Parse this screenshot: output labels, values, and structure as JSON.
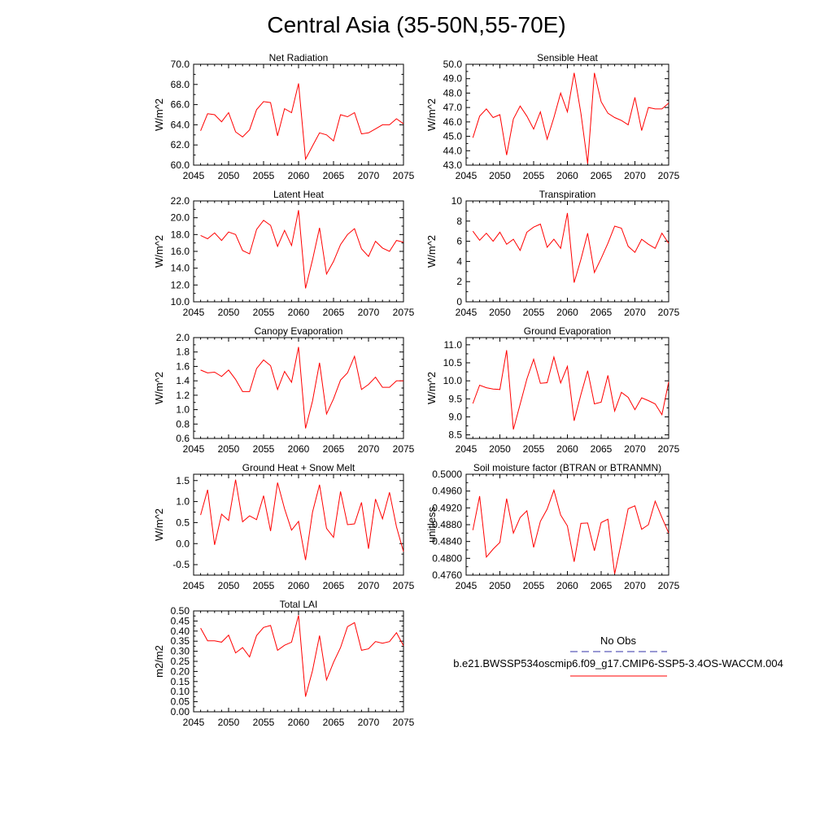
{
  "figure": {
    "title": "Central Asia (35-50N,55-70E)"
  },
  "colors": {
    "model_line": "#ff0000",
    "obs_line": "#3333aa",
    "axes": "#000000",
    "background": "#ffffff"
  },
  "legend": {
    "entries": [
      {
        "label": "No Obs",
        "style": "dashed",
        "color": "#3333aa"
      },
      {
        "label": "b.e21.BWSSP534oscmip6.f09_g17.CMIP6-SSP5-3.4OS-WACCM.004",
        "style": "solid",
        "color": "#ff0000"
      }
    ]
  },
  "chart_data": [
    {
      "type": "line",
      "title": "Net Radiation",
      "ylabel": "W/m^2",
      "xlim": [
        2045,
        2075
      ],
      "ylim": [
        60,
        70
      ],
      "xticks": [
        2045,
        2050,
        2055,
        2060,
        2065,
        2070,
        2075
      ],
      "xtick_labels": [
        "2045",
        "2050",
        "2055",
        "2060",
        "2065",
        "2070",
        "2075"
      ],
      "yticks": [
        60,
        62,
        64,
        66,
        68,
        70
      ],
      "ytick_labels": [
        "60.0",
        "62.0",
        "64.0",
        "66.0",
        "68.0",
        "70.0"
      ],
      "x": [
        2046,
        2047,
        2048,
        2049,
        2050,
        2051,
        2052,
        2053,
        2054,
        2055,
        2056,
        2057,
        2058,
        2059,
        2060,
        2061,
        2062,
        2063,
        2064,
        2065,
        2066,
        2067,
        2068,
        2069,
        2070,
        2071,
        2072,
        2073,
        2074,
        2075
      ],
      "series": [
        {
          "values": [
            63.4,
            65.1,
            65.0,
            64.3,
            65.2,
            63.3,
            62.8,
            63.5,
            65.5,
            66.3,
            66.2,
            62.9,
            65.6,
            65.2,
            68.1,
            60.6,
            61.9,
            63.2,
            63.0,
            62.4,
            65.0,
            64.8,
            65.2,
            63.1,
            63.2,
            63.6,
            64.0,
            64.0,
            64.6,
            64.1
          ]
        }
      ]
    },
    {
      "type": "line",
      "title": "Sensible Heat",
      "ylabel": "W/m^2",
      "xlim": [
        2045,
        2075
      ],
      "ylim": [
        43,
        50
      ],
      "xticks": [
        2045,
        2050,
        2055,
        2060,
        2065,
        2070,
        2075
      ],
      "xtick_labels": [
        "2045",
        "2050",
        "2055",
        "2060",
        "2065",
        "2070",
        "2075"
      ],
      "yticks": [
        43,
        44,
        45,
        46,
        47,
        48,
        49,
        50
      ],
      "ytick_labels": [
        "43.0",
        "44.0",
        "45.0",
        "46.0",
        "47.0",
        "48.0",
        "49.0",
        "50.0"
      ],
      "x": [
        2046,
        2047,
        2048,
        2049,
        2050,
        2051,
        2052,
        2053,
        2054,
        2055,
        2056,
        2057,
        2058,
        2059,
        2060,
        2061,
        2062,
        2063,
        2064,
        2065,
        2066,
        2067,
        2068,
        2069,
        2070,
        2071,
        2072,
        2073,
        2074,
        2075
      ],
      "series": [
        {
          "values": [
            44.9,
            46.4,
            46.9,
            46.3,
            46.5,
            43.7,
            46.2,
            47.1,
            46.4,
            45.5,
            46.7,
            44.8,
            46.3,
            48.0,
            46.7,
            49.4,
            46.6,
            43.1,
            49.4,
            47.4,
            46.6,
            46.3,
            46.1,
            45.8,
            47.7,
            45.4,
            47.0,
            46.9,
            46.9,
            47.3
          ]
        }
      ]
    },
    {
      "type": "line",
      "title": "Latent Heat",
      "ylabel": "W/m^2",
      "xlim": [
        2045,
        2075
      ],
      "ylim": [
        10,
        22
      ],
      "xticks": [
        2045,
        2050,
        2055,
        2060,
        2065,
        2070,
        2075
      ],
      "xtick_labels": [
        "2045",
        "2050",
        "2055",
        "2060",
        "2065",
        "2070",
        "2075"
      ],
      "yticks": [
        10,
        12,
        14,
        16,
        18,
        20,
        22
      ],
      "ytick_labels": [
        "10.0",
        "12.0",
        "14.0",
        "16.0",
        "18.0",
        "20.0",
        "22.0"
      ],
      "x": [
        2046,
        2047,
        2048,
        2049,
        2050,
        2051,
        2052,
        2053,
        2054,
        2055,
        2056,
        2057,
        2058,
        2059,
        2060,
        2061,
        2062,
        2063,
        2064,
        2065,
        2066,
        2067,
        2068,
        2069,
        2070,
        2071,
        2072,
        2073,
        2074,
        2075
      ],
      "series": [
        {
          "values": [
            17.9,
            17.5,
            18.2,
            17.3,
            18.3,
            18.0,
            16.1,
            15.7,
            18.6,
            19.7,
            19.1,
            16.6,
            18.5,
            16.7,
            20.9,
            11.6,
            15.0,
            18.8,
            13.3,
            14.8,
            16.8,
            18.0,
            18.7,
            16.3,
            15.4,
            17.2,
            16.4,
            16.0,
            17.3,
            17.1
          ]
        }
      ]
    },
    {
      "type": "line",
      "title": "Transpiration",
      "ylabel": "W/m^2",
      "xlim": [
        2045,
        2075
      ],
      "ylim": [
        0,
        10
      ],
      "xticks": [
        2045,
        2050,
        2055,
        2060,
        2065,
        2070,
        2075
      ],
      "xtick_labels": [
        "2045",
        "2050",
        "2055",
        "2060",
        "2065",
        "2070",
        "2075"
      ],
      "yticks": [
        0,
        2,
        4,
        6,
        8,
        10
      ],
      "ytick_labels": [
        "0",
        "2",
        "4",
        "6",
        "8",
        "10"
      ],
      "x": [
        2046,
        2047,
        2048,
        2049,
        2050,
        2051,
        2052,
        2053,
        2054,
        2055,
        2056,
        2057,
        2058,
        2059,
        2060,
        2061,
        2062,
        2063,
        2064,
        2065,
        2066,
        2067,
        2068,
        2069,
        2070,
        2071,
        2072,
        2073,
        2074,
        2075
      ],
      "series": [
        {
          "values": [
            7.0,
            6.1,
            6.8,
            6.0,
            6.9,
            5.7,
            6.2,
            5.1,
            6.9,
            7.4,
            7.7,
            5.4,
            6.2,
            5.3,
            8.8,
            1.9,
            4.2,
            6.8,
            2.9,
            4.3,
            5.8,
            7.5,
            7.3,
            5.5,
            4.9,
            6.2,
            5.7,
            5.3,
            6.8,
            5.8
          ]
        }
      ]
    },
    {
      "type": "line",
      "title": "Canopy Evaporation",
      "ylabel": "W/m^2",
      "xlim": [
        2045,
        2075
      ],
      "ylim": [
        0.6,
        2.0
      ],
      "xticks": [
        2045,
        2050,
        2055,
        2060,
        2065,
        2070,
        2075
      ],
      "xtick_labels": [
        "2045",
        "2050",
        "2055",
        "2060",
        "2065",
        "2070",
        "2075"
      ],
      "yticks": [
        0.6,
        0.8,
        1.0,
        1.2,
        1.4,
        1.6,
        1.8,
        2.0
      ],
      "ytick_labels": [
        "0.6",
        "0.8",
        "1.0",
        "1.2",
        "1.4",
        "1.6",
        "1.8",
        "2.0"
      ],
      "x": [
        2046,
        2047,
        2048,
        2049,
        2050,
        2051,
        2052,
        2053,
        2054,
        2055,
        2056,
        2057,
        2058,
        2059,
        2060,
        2061,
        2062,
        2063,
        2064,
        2065,
        2066,
        2067,
        2068,
        2069,
        2070,
        2071,
        2072,
        2073,
        2074,
        2075
      ],
      "series": [
        {
          "values": [
            1.55,
            1.51,
            1.52,
            1.46,
            1.55,
            1.42,
            1.25,
            1.25,
            1.57,
            1.69,
            1.61,
            1.28,
            1.53,
            1.38,
            1.87,
            0.74,
            1.12,
            1.65,
            0.94,
            1.15,
            1.41,
            1.51,
            1.74,
            1.28,
            1.35,
            1.45,
            1.31,
            1.31,
            1.4,
            1.4
          ]
        }
      ]
    },
    {
      "type": "line",
      "title": "Ground Evaporation",
      "ylabel": "W/m^2",
      "xlim": [
        2045,
        2075
      ],
      "ylim": [
        8.4,
        11.2
      ],
      "xticks": [
        2045,
        2050,
        2055,
        2060,
        2065,
        2070,
        2075
      ],
      "xtick_labels": [
        "2045",
        "2050",
        "2055",
        "2060",
        "2065",
        "2070",
        "2075"
      ],
      "yticks": [
        8.5,
        9.0,
        9.5,
        10.0,
        10.5,
        11.0
      ],
      "ytick_labels": [
        "8.5",
        "9.0",
        "9.5",
        "10.0",
        "10.5",
        "11.0"
      ],
      "x": [
        2046,
        2047,
        2048,
        2049,
        2050,
        2051,
        2052,
        2053,
        2054,
        2055,
        2056,
        2057,
        2058,
        2059,
        2060,
        2061,
        2062,
        2063,
        2064,
        2065,
        2066,
        2067,
        2068,
        2069,
        2070,
        2071,
        2072,
        2073,
        2074,
        2075
      ],
      "series": [
        {
          "values": [
            9.37,
            9.88,
            9.81,
            9.77,
            9.76,
            10.85,
            8.65,
            9.35,
            10.05,
            10.6,
            9.93,
            9.95,
            10.66,
            9.94,
            10.4,
            8.89,
            9.62,
            10.28,
            9.36,
            9.41,
            10.15,
            9.16,
            9.68,
            9.54,
            9.2,
            9.53,
            9.45,
            9.36,
            9.06,
            9.97
          ]
        }
      ]
    },
    {
      "type": "line",
      "title": "Ground Heat + Snow Melt",
      "ylabel": "W/m^2",
      "xlim": [
        2045,
        2075
      ],
      "ylim": [
        -0.75,
        1.65
      ],
      "xticks": [
        2045,
        2050,
        2055,
        2060,
        2065,
        2070,
        2075
      ],
      "xtick_labels": [
        "2045",
        "2050",
        "2055",
        "2060",
        "2065",
        "2070",
        "2075"
      ],
      "yticks": [
        -0.5,
        0.0,
        0.5,
        1.0,
        1.5
      ],
      "ytick_labels": [
        "-0.5",
        "0.0",
        "0.5",
        "1.0",
        "1.5"
      ],
      "x": [
        2046,
        2047,
        2048,
        2049,
        2050,
        2051,
        2052,
        2053,
        2054,
        2055,
        2056,
        2057,
        2058,
        2059,
        2060,
        2061,
        2062,
        2063,
        2064,
        2065,
        2066,
        2067,
        2068,
        2069,
        2070,
        2071,
        2072,
        2073,
        2074,
        2075
      ],
      "series": [
        {
          "values": [
            0.68,
            1.28,
            -0.03,
            0.7,
            0.55,
            1.52,
            0.52,
            0.66,
            0.57,
            1.14,
            0.3,
            1.45,
            0.83,
            0.32,
            0.53,
            -0.39,
            0.75,
            1.4,
            0.36,
            0.15,
            1.24,
            0.45,
            0.47,
            0.98,
            -0.12,
            1.06,
            0.59,
            1.22,
            0.4,
            -0.19
          ]
        }
      ]
    },
    {
      "type": "line",
      "title": "Soil moisture factor (BTRAN or BTRANMN)",
      "ylabel": "unitless",
      "xlim": [
        2045,
        2075
      ],
      "ylim": [
        0.476,
        0.5
      ],
      "xticks": [
        2045,
        2050,
        2055,
        2060,
        2065,
        2070,
        2075
      ],
      "xtick_labels": [
        "2045",
        "2050",
        "2055",
        "2060",
        "2065",
        "2070",
        "2075"
      ],
      "yticks": [
        0.476,
        0.48,
        0.484,
        0.488,
        0.492,
        0.496,
        0.5
      ],
      "ytick_labels": [
        "0.4760",
        "0.4800",
        "0.4840",
        "0.4880",
        "0.4920",
        "0.4960",
        "0.5000"
      ],
      "x": [
        2046,
        2047,
        2048,
        2049,
        2050,
        2051,
        2052,
        2053,
        2054,
        2055,
        2056,
        2057,
        2058,
        2059,
        2060,
        2061,
        2062,
        2063,
        2064,
        2065,
        2066,
        2067,
        2068,
        2069,
        2070,
        2071,
        2072,
        2073,
        2074,
        2075
      ],
      "series": [
        {
          "values": [
            0.4867,
            0.4948,
            0.4803,
            0.4822,
            0.4838,
            0.4942,
            0.486,
            0.4897,
            0.4913,
            0.4826,
            0.4888,
            0.4917,
            0.4962,
            0.4903,
            0.4877,
            0.4792,
            0.4883,
            0.4884,
            0.4818,
            0.4885,
            0.4893,
            0.4763,
            0.4839,
            0.4918,
            0.4925,
            0.4869,
            0.488,
            0.4936,
            0.4897,
            0.486
          ]
        }
      ]
    },
    {
      "type": "line",
      "title": "Total LAI",
      "ylabel": "m2/m2",
      "xlim": [
        2045,
        2075
      ],
      "ylim": [
        0.0,
        0.5
      ],
      "xticks": [
        2045,
        2050,
        2055,
        2060,
        2065,
        2070,
        2075
      ],
      "xtick_labels": [
        "2045",
        "2050",
        "2055",
        "2060",
        "2065",
        "2070",
        "2075"
      ],
      "yticks": [
        0.0,
        0.05,
        0.1,
        0.15,
        0.2,
        0.25,
        0.3,
        0.35,
        0.4,
        0.45,
        0.5
      ],
      "ytick_labels": [
        "0.00",
        "0.05",
        "0.10",
        "0.15",
        "0.20",
        "0.25",
        "0.30",
        "0.35",
        "0.40",
        "0.45",
        "0.50"
      ],
      "x": [
        2046,
        2047,
        2048,
        2049,
        2050,
        2051,
        2052,
        2053,
        2054,
        2055,
        2056,
        2057,
        2058,
        2059,
        2060,
        2061,
        2062,
        2063,
        2064,
        2065,
        2066,
        2067,
        2068,
        2069,
        2070,
        2071,
        2072,
        2073,
        2074,
        2075
      ],
      "series": [
        {
          "values": [
            0.415,
            0.352,
            0.352,
            0.345,
            0.38,
            0.292,
            0.318,
            0.272,
            0.378,
            0.418,
            0.428,
            0.305,
            0.33,
            0.345,
            0.478,
            0.075,
            0.205,
            0.378,
            0.158,
            0.245,
            0.318,
            0.422,
            0.442,
            0.305,
            0.312,
            0.348,
            0.34,
            0.348,
            0.392,
            0.328
          ]
        }
      ]
    }
  ]
}
